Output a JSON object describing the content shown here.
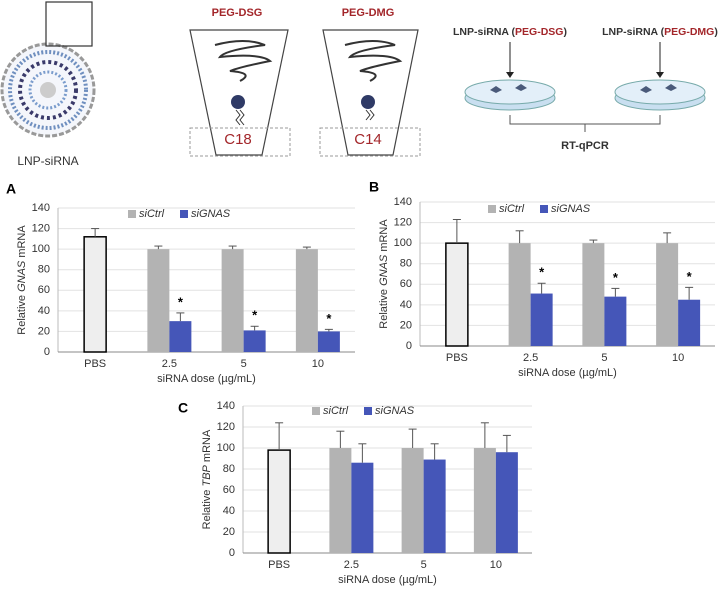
{
  "schematic": {
    "lnp_label": "LNP-siRNA",
    "peg_dsg": "PEG-DSG",
    "peg_dmg": "PEG-DMG",
    "c18": "C18",
    "c14": "C14",
    "dish_1": [
      "LNP-siRNA (",
      "PEG-DSG",
      ")"
    ],
    "dish_2": [
      "LNP-siRNA (",
      "PEG-DMG",
      ")"
    ],
    "assay": "RT-qPCR"
  },
  "chart_data": [
    {
      "type": "bar",
      "panel": "A",
      "y_label": [
        "Relative ",
        "GNAS",
        " mRNA"
      ],
      "x_label": "siRNA dose (µg/mL)",
      "categories": [
        "PBS",
        "2.5",
        "5",
        "10"
      ],
      "ylim": [
        0,
        140
      ],
      "yticks": [
        0,
        20,
        40,
        60,
        80,
        100,
        120,
        140
      ],
      "grid": true,
      "series": [
        {
          "color": "#eeeeee",
          "values": [
            112,
            null,
            null,
            null
          ],
          "errors": [
            8,
            null,
            null,
            null
          ]
        },
        {
          "name": "siCtrl",
          "color": "#b3b3b3",
          "values": [
            null,
            100,
            100,
            100
          ],
          "errors": [
            null,
            3,
            3,
            2
          ]
        },
        {
          "name": "siGNAS",
          "color": "#4556b8",
          "values": [
            null,
            30,
            21,
            20
          ],
          "errors": [
            null,
            8,
            4,
            2
          ],
          "significance": [
            null,
            "*",
            "*",
            "*"
          ]
        }
      ]
    },
    {
      "type": "bar",
      "panel": "B",
      "y_label": [
        "Relative ",
        "GNAS",
        " mRNA"
      ],
      "x_label": "siRNA dose (µg/mL)",
      "categories": [
        "PBS",
        "2.5",
        "5",
        "10"
      ],
      "ylim": [
        0,
        140
      ],
      "yticks": [
        0,
        20,
        40,
        60,
        80,
        100,
        120,
        140
      ],
      "grid": true,
      "series": [
        {
          "color": "#eeeeee",
          "values": [
            100,
            null,
            null,
            null
          ],
          "errors": [
            23,
            null,
            null,
            null
          ]
        },
        {
          "name": "siCtrl",
          "color": "#b3b3b3",
          "values": [
            null,
            100,
            100,
            100
          ],
          "errors": [
            null,
            12,
            3,
            10
          ]
        },
        {
          "name": "siGNAS",
          "color": "#4556b8",
          "values": [
            null,
            51,
            48,
            45
          ],
          "errors": [
            null,
            10,
            8,
            12
          ],
          "significance": [
            null,
            "*",
            "*",
            "*"
          ]
        }
      ]
    },
    {
      "type": "bar",
      "panel": "C",
      "y_label": [
        "Relative ",
        "TBP",
        " mRNA"
      ],
      "x_label": "siRNA dose (µg/mL)",
      "categories": [
        "PBS",
        "2.5",
        "5",
        "10"
      ],
      "ylim": [
        0,
        140
      ],
      "yticks": [
        0,
        20,
        40,
        60,
        80,
        100,
        120,
        140
      ],
      "grid": true,
      "series": [
        {
          "color": "#eeeeee",
          "values": [
            98,
            null,
            null,
            null
          ],
          "errors": [
            26,
            null,
            null,
            null
          ]
        },
        {
          "name": "siCtrl",
          "color": "#b3b3b3",
          "values": [
            null,
            100,
            100,
            100
          ],
          "errors": [
            null,
            16,
            18,
            24
          ]
        },
        {
          "name": "siGNAS",
          "color": "#4556b8",
          "values": [
            null,
            86,
            89,
            96
          ],
          "errors": [
            null,
            18,
            15,
            16
          ]
        }
      ]
    }
  ]
}
